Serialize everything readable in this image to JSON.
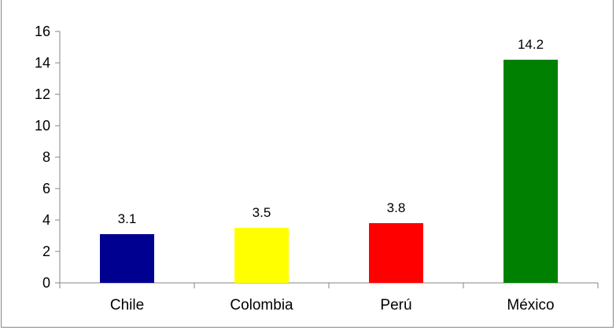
{
  "chart_data": {
    "type": "bar",
    "title": "",
    "xlabel": "",
    "ylabel": "",
    "categories": [
      "Chile",
      "Colombia",
      "Perú",
      "México"
    ],
    "values": [
      3.1,
      3.5,
      3.8,
      14.2
    ],
    "data_labels": [
      "3.1",
      "3.5",
      "3.8",
      "14.2"
    ],
    "colors": [
      "#000090",
      "#ffff00",
      "#ff0000",
      "#008000"
    ],
    "ylim": [
      0,
      16
    ],
    "yticks": [
      0,
      2,
      4,
      6,
      8,
      10,
      12,
      14,
      16
    ],
    "grid": false,
    "legend": "none"
  }
}
